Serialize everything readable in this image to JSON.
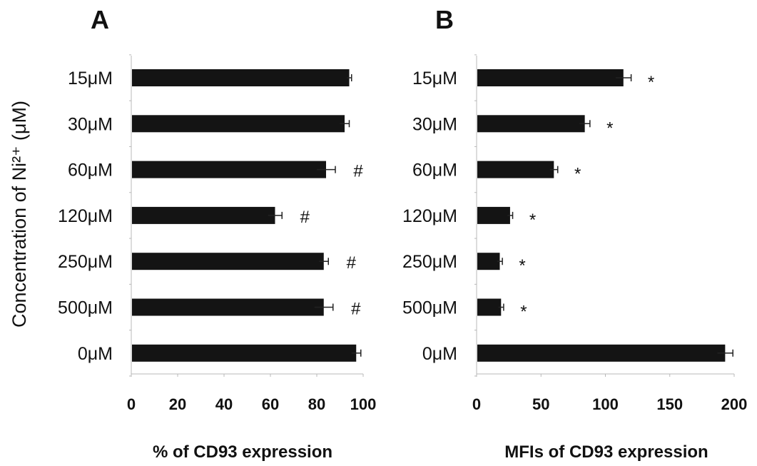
{
  "y_axis_label": "Concentration of Ni²⁺ (μM)",
  "chart_data": [
    {
      "type": "bar",
      "orientation": "horizontal",
      "panel_label": "A",
      "categories": [
        "15μM",
        "30μM",
        "60μM",
        "120μM",
        "250μM",
        "500μM",
        "0μM"
      ],
      "values": [
        94,
        92,
        84,
        62,
        83,
        83,
        97
      ],
      "errors": [
        1,
        2,
        4,
        3,
        2,
        4,
        2
      ],
      "markers": [
        "",
        "",
        "#",
        "#",
        "#",
        "#",
        ""
      ],
      "xlabel": "% of CD93 expression",
      "xlim": [
        0,
        100
      ],
      "xticks": [
        "0",
        "20",
        "40",
        "60",
        "80",
        "100"
      ]
    },
    {
      "type": "bar",
      "orientation": "horizontal",
      "panel_label": "B",
      "categories": [
        "15μM",
        "30μM",
        "60μM",
        "120μM",
        "250μM",
        "500μM",
        "0μM"
      ],
      "values": [
        114,
        84,
        60,
        26,
        18,
        19,
        193
      ],
      "errors": [
        6,
        4,
        3,
        2,
        2,
        2,
        6
      ],
      "markers": [
        "*",
        "*",
        "*",
        "*",
        "*",
        "*",
        ""
      ],
      "xlabel": "MFIs of CD93 expression",
      "xlim": [
        0,
        200
      ],
      "xticks": [
        "0",
        "50",
        "100",
        "150",
        "200"
      ]
    }
  ]
}
